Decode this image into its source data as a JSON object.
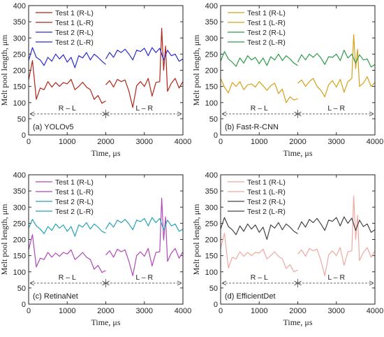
{
  "chart_data": [
    {
      "type": "line",
      "caption": "(a) YOLOv5",
      "xlabel": "Time, μs",
      "ylabel": "Melt pool length, μm",
      "xlim": [
        0,
        4000
      ],
      "ylim": [
        0,
        400
      ],
      "xticks": [
        0,
        1000,
        2000,
        3000,
        4000
      ],
      "yticks": [
        0,
        50,
        100,
        150,
        200,
        250,
        300,
        350,
        400
      ],
      "grid": false,
      "legend_position": "top-left",
      "region_labels": [
        "R – L",
        "L – R"
      ],
      "region_y": 65,
      "region_divider_x": 2000,
      "series": [
        {
          "name": "Test 1 (R-L)",
          "color": "#b02418",
          "x": [
            0,
            100,
            200,
            300,
            400,
            500,
            600,
            700,
            800,
            900,
            1000,
            1100,
            1200,
            1300,
            1400,
            1500,
            1600,
            1700,
            1800,
            1900,
            2000
          ],
          "y": [
            170,
            230,
            110,
            145,
            140,
            165,
            148,
            162,
            150,
            162,
            158,
            172,
            140,
            150,
            163,
            148,
            140,
            110,
            122,
            98,
            105
          ]
        },
        {
          "name": "Test 1 (L-R)",
          "color": "#b02418",
          "x": [
            2000,
            2100,
            2200,
            2300,
            2400,
            2500,
            2600,
            2700,
            2800,
            2900,
            3000,
            3100,
            3200,
            3300,
            3400,
            3450,
            3500,
            3550,
            3600,
            3700,
            3800,
            3900,
            4000
          ],
          "y": [
            155,
            168,
            148,
            172,
            165,
            170,
            135,
            85,
            152,
            165,
            150,
            175,
            120,
            162,
            165,
            330,
            200,
            275,
            135,
            160,
            175,
            145,
            165
          ]
        },
        {
          "name": "Test 2 (R-L)",
          "color": "#2a2ad0",
          "x": [
            0,
            100,
            200,
            300,
            400,
            500,
            600,
            700,
            800,
            900,
            1000,
            1100,
            1200,
            1300,
            1400,
            1500,
            1600,
            1700,
            1800,
            1900,
            2000
          ],
          "y": [
            230,
            270,
            240,
            232,
            215,
            240,
            228,
            250,
            235,
            248,
            225,
            240,
            208,
            245,
            238,
            255,
            232,
            250,
            240,
            228,
            218
          ]
        },
        {
          "name": "Test 2 (L-R)",
          "color": "#2a2ad0",
          "x": [
            2000,
            2100,
            2200,
            2300,
            2400,
            2500,
            2600,
            2700,
            2800,
            2900,
            3000,
            3100,
            3200,
            3300,
            3400,
            3500,
            3600,
            3700,
            3800,
            3900,
            4000
          ],
          "y": [
            235,
            255,
            240,
            262,
            255,
            265,
            250,
            232,
            262,
            258,
            268,
            245,
            270,
            255,
            268,
            232,
            262,
            245,
            250,
            228,
            235
          ]
        }
      ]
    },
    {
      "type": "line",
      "caption": "(b) Fast-R-CNN",
      "xlabel": "Time, μs",
      "ylabel": "Melt pool length, μm",
      "xlim": [
        0,
        4000
      ],
      "ylim": [
        0,
        400
      ],
      "xticks": [
        0,
        1000,
        2000,
        3000,
        4000
      ],
      "yticks": [
        0,
        50,
        100,
        150,
        200,
        250,
        300,
        350,
        400
      ],
      "grid": false,
      "legend_position": "top-left",
      "region_labels": [
        "R – L",
        "L – R"
      ],
      "region_y": 65,
      "region_divider_x": 2000,
      "series": [
        {
          "name": "Test 1 (R-L)",
          "color": "#d4a017",
          "x": [
            0,
            100,
            200,
            300,
            400,
            500,
            600,
            700,
            800,
            900,
            1000,
            1100,
            1200,
            1300,
            1400,
            1500,
            1600,
            1700,
            1800,
            1900,
            2000
          ],
          "y": [
            175,
            148,
            130,
            162,
            150,
            165,
            140,
            155,
            158,
            148,
            165,
            152,
            138,
            152,
            160,
            128,
            142,
            100,
            118,
            108,
            112
          ]
        },
        {
          "name": "Test 1 (L-R)",
          "color": "#d4a017",
          "x": [
            2000,
            2100,
            2200,
            2300,
            2400,
            2500,
            2600,
            2700,
            2800,
            2900,
            3000,
            3100,
            3200,
            3300,
            3400,
            3450,
            3500,
            3550,
            3600,
            3700,
            3800,
            3900,
            4000
          ],
          "y": [
            160,
            170,
            150,
            165,
            175,
            150,
            138,
            118,
            155,
            168,
            148,
            172,
            132,
            165,
            175,
            310,
            205,
            265,
            150,
            160,
            180,
            150,
            162
          ]
        },
        {
          "name": "Test 2 (R-L)",
          "color": "#2e9a4a",
          "x": [
            0,
            100,
            200,
            300,
            400,
            500,
            600,
            700,
            800,
            900,
            1000,
            1100,
            1200,
            1300,
            1400,
            1500,
            1600,
            1700,
            1800,
            1900,
            2000
          ],
          "y": [
            228,
            258,
            235,
            225,
            212,
            238,
            222,
            245,
            232,
            240,
            220,
            238,
            215,
            242,
            232,
            250,
            230,
            245,
            235,
            222,
            215
          ]
        },
        {
          "name": "Test 2 (L-R)",
          "color": "#2e9a4a",
          "x": [
            2000,
            2100,
            2200,
            2300,
            2400,
            2500,
            2600,
            2700,
            2800,
            2900,
            3000,
            3100,
            3200,
            3300,
            3400,
            3500,
            3600,
            3700,
            3800,
            3900,
            4000
          ],
          "y": [
            225,
            248,
            232,
            250,
            240,
            252,
            238,
            218,
            242,
            240,
            250,
            230,
            262,
            238,
            250,
            222,
            248,
            232,
            235,
            210,
            218
          ]
        }
      ]
    },
    {
      "type": "line",
      "caption": "(c) RetinaNet",
      "xlabel": "Time, μs",
      "ylabel": "Melt pool length, μm",
      "xlim": [
        0,
        4000
      ],
      "ylim": [
        0,
        400
      ],
      "xticks": [
        0,
        1000,
        2000,
        3000,
        4000
      ],
      "yticks": [
        0,
        50,
        100,
        150,
        200,
        250,
        300,
        350,
        400
      ],
      "grid": false,
      "legend_position": "top-left",
      "region_labels": [
        "R – L",
        "L – R"
      ],
      "region_y": 65,
      "region_divider_x": 2000,
      "series": [
        {
          "name": "Test 1 (R-L)",
          "color": "#b048b8",
          "x": [
            0,
            100,
            200,
            300,
            400,
            500,
            600,
            700,
            800,
            900,
            1000,
            1100,
            1200,
            1300,
            1400,
            1500,
            1600,
            1700,
            1800,
            1900,
            2000
          ],
          "y": [
            168,
            215,
            115,
            142,
            138,
            160,
            145,
            158,
            148,
            160,
            155,
            168,
            138,
            148,
            160,
            145,
            138,
            108,
            120,
            98,
            104
          ]
        },
        {
          "name": "Test 1 (L-R)",
          "color": "#b048b8",
          "x": [
            2000,
            2100,
            2200,
            2300,
            2400,
            2500,
            2600,
            2700,
            2800,
            2900,
            3000,
            3100,
            3200,
            3300,
            3400,
            3450,
            3500,
            3550,
            3600,
            3700,
            3800,
            3900,
            4000
          ],
          "y": [
            152,
            165,
            145,
            170,
            162,
            168,
            132,
            88,
            150,
            162,
            148,
            172,
            118,
            160,
            162,
            328,
            198,
            270,
            132,
            158,
            172,
            142,
            162
          ]
        },
        {
          "name": "Test 2 (R-L)",
          "color": "#25a3b5",
          "x": [
            0,
            100,
            200,
            300,
            400,
            500,
            600,
            700,
            800,
            900,
            1000,
            1100,
            1200,
            1300,
            1400,
            1500,
            1600,
            1700,
            1800,
            1900,
            2000
          ],
          "y": [
            235,
            262,
            242,
            232,
            218,
            240,
            228,
            248,
            235,
            245,
            225,
            240,
            210,
            245,
            238,
            252,
            232,
            248,
            238,
            225,
            220
          ]
        },
        {
          "name": "Test 2 (L-R)",
          "color": "#25a3b5",
          "x": [
            2000,
            2100,
            2200,
            2300,
            2400,
            2500,
            2600,
            2700,
            2800,
            2900,
            3000,
            3100,
            3200,
            3300,
            3400,
            3500,
            3600,
            3700,
            3800,
            3900,
            4000
          ],
          "y": [
            232,
            252,
            238,
            260,
            252,
            262,
            248,
            230,
            260,
            255,
            265,
            242,
            268,
            252,
            265,
            230,
            260,
            242,
            248,
            225,
            232
          ]
        }
      ]
    },
    {
      "type": "line",
      "caption": "(d) EfficientDet",
      "xlabel": "Time, μs",
      "ylabel": "Melt pool length, μm",
      "xlim": [
        0,
        4000
      ],
      "ylim": [
        0,
        400
      ],
      "xticks": [
        0,
        1000,
        2000,
        3000,
        4000
      ],
      "yticks": [
        0,
        50,
        100,
        150,
        200,
        250,
        300,
        350,
        400
      ],
      "grid": false,
      "legend_position": "top-left",
      "region_labels": [
        "R – L",
        "L – R"
      ],
      "region_y": 65,
      "region_divider_x": 2000,
      "series": [
        {
          "name": "Test 1 (R-L)",
          "color": "#f0a8a0",
          "x": [
            0,
            100,
            200,
            300,
            400,
            500,
            600,
            700,
            800,
            900,
            1000,
            1100,
            1200,
            1300,
            1400,
            1500,
            1600,
            1700,
            1800,
            1900,
            2000
          ],
          "y": [
            172,
            220,
            112,
            145,
            140,
            162,
            148,
            160,
            150,
            160,
            158,
            170,
            140,
            150,
            162,
            148,
            140,
            110,
            122,
            100,
            106
          ]
        },
        {
          "name": "Test 1 (L-R)",
          "color": "#f0a8a0",
          "x": [
            2000,
            2100,
            2200,
            2300,
            2400,
            2500,
            2600,
            2700,
            2800,
            2900,
            3000,
            3100,
            3200,
            3300,
            3400,
            3450,
            3500,
            3550,
            3600,
            3700,
            3800,
            3900,
            4000
          ],
          "y": [
            155,
            168,
            148,
            172,
            165,
            170,
            135,
            88,
            152,
            165,
            150,
            175,
            120,
            162,
            165,
            335,
            200,
            275,
            135,
            160,
            175,
            145,
            165
          ]
        },
        {
          "name": "Test 2 (R-L)",
          "color": "#444444",
          "x": [
            0,
            100,
            200,
            300,
            400,
            500,
            600,
            700,
            800,
            900,
            1000,
            1100,
            1200,
            1300,
            1400,
            1500,
            1600,
            1700,
            1800,
            1900,
            2000
          ],
          "y": [
            232,
            268,
            240,
            230,
            215,
            242,
            225,
            248,
            232,
            245,
            222,
            238,
            200,
            245,
            235,
            252,
            230,
            248,
            238,
            225,
            218
          ]
        },
        {
          "name": "Test 2 (L-R)",
          "color": "#444444",
          "x": [
            2000,
            2100,
            2200,
            2300,
            2400,
            2500,
            2600,
            2700,
            2800,
            2900,
            3000,
            3100,
            3200,
            3300,
            3400,
            3500,
            3600,
            3700,
            3800,
            3900,
            4000
          ],
          "y": [
            230,
            255,
            238,
            262,
            252,
            265,
            248,
            228,
            260,
            256,
            268,
            242,
            270,
            250,
            266,
            228,
            260,
            240,
            248,
            222,
            230
          ]
        }
      ]
    }
  ]
}
